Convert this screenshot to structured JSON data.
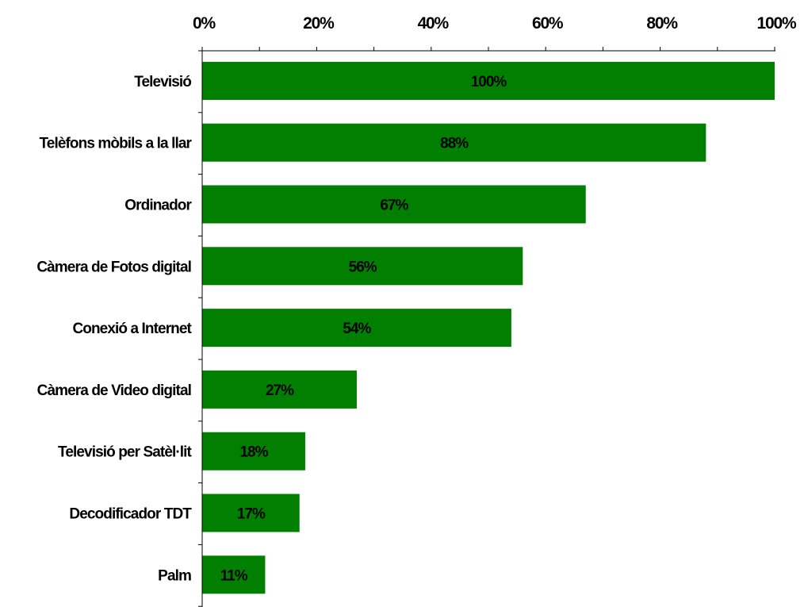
{
  "chart_data": {
    "type": "bar",
    "orientation": "horizontal",
    "categories": [
      "Televisió",
      "Telèfons mòbils a la llar",
      "Ordinador ",
      "Càmera de Fotos digital",
      "Conexió a Internet ",
      "Càmera de Video digital",
      "Televisió per Satèl·lit",
      "Decodificador TDT",
      "Palm"
    ],
    "values": [
      100,
      88,
      67,
      56,
      54,
      27,
      18,
      17,
      11
    ],
    "data_labels": [
      "100%",
      "88%",
      "67%",
      "56%",
      "54%",
      "27%",
      "18%",
      "17%",
      "11%"
    ],
    "x_ticks": [
      "0%",
      "20%",
      "40%",
      "60%",
      "80%",
      "100%"
    ],
    "xlim": [
      0,
      100
    ],
    "x_axis_position": "top",
    "title": "",
    "xlabel": "",
    "ylabel": "",
    "grid": false,
    "legend": "none",
    "bar_color": "#007f00"
  }
}
